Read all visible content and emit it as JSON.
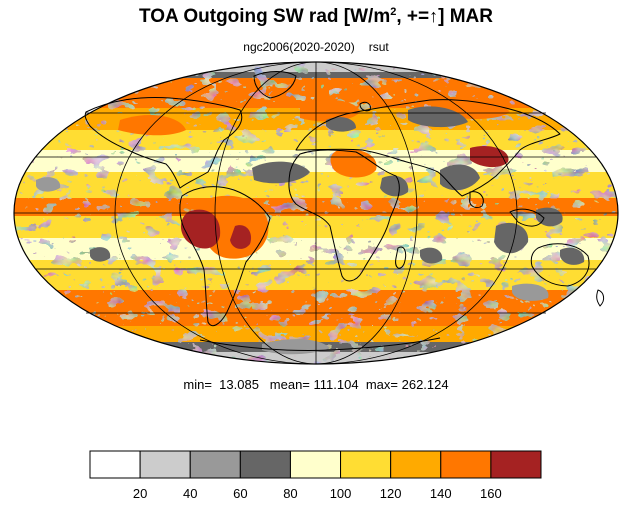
{
  "title": {
    "main": "TOA Outgoing SW rad [W/m",
    "sup": "2",
    "rest": ", +=",
    "arrow": "↑",
    "end": "] MAR"
  },
  "subtitle": {
    "case": "ngc2006(2020-2020)",
    "variable": "rsut"
  },
  "stats": {
    "min_label": "min=",
    "min": "13.085",
    "mean_label": "mean=",
    "mean": "111.104",
    "max_label": "max=",
    "max": "262.124"
  },
  "projection": "mollweide",
  "colorbar": {
    "levels": [
      20,
      40,
      60,
      80,
      100,
      120,
      140,
      160
    ],
    "labels": [
      "20",
      "40",
      "60",
      "80",
      "100",
      "120",
      "140",
      "160"
    ],
    "colors": [
      "#ffffff",
      "#cccccc",
      "#999999",
      "#666666",
      "#ffffcc",
      "#ffdd33",
      "#ffaa00",
      "#ff7700",
      "#a52222"
    ]
  }
}
